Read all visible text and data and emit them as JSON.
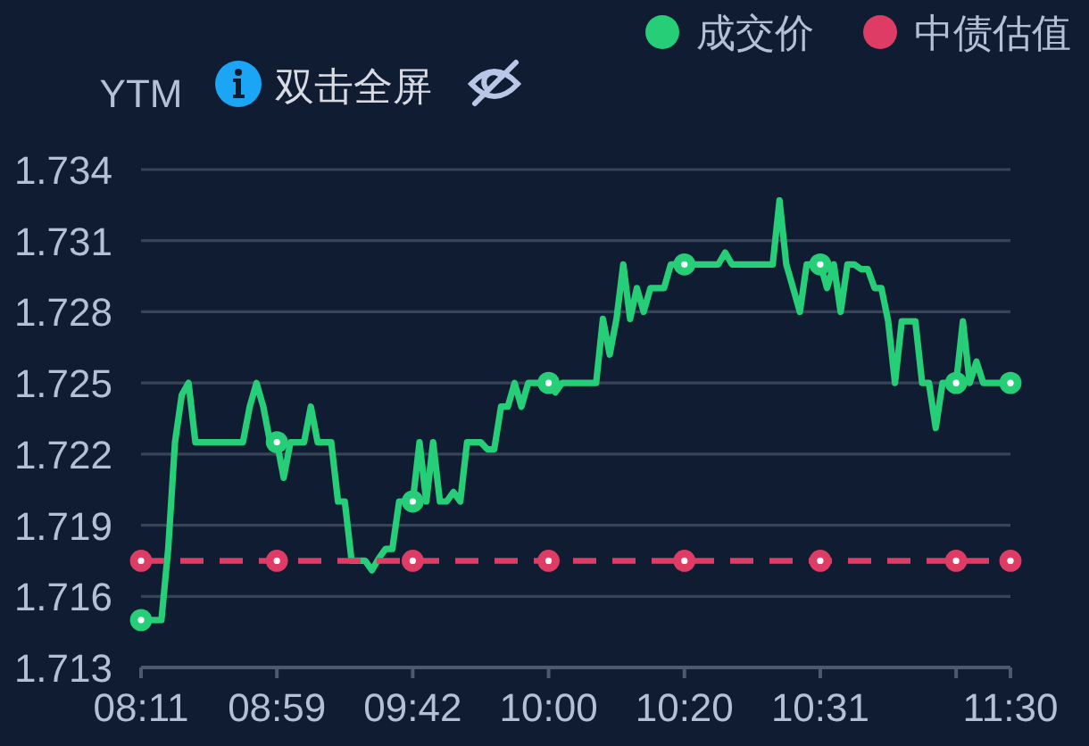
{
  "chart_data": {
    "type": "line",
    "ylabel": "YTM",
    "annotations": [
      "双击全屏"
    ],
    "categories": [
      "08:11",
      null,
      null,
      null,
      null,
      null,
      null,
      null,
      null,
      null,
      null,
      null,
      null,
      null,
      null,
      null,
      null,
      null,
      null,
      null,
      "08:59",
      null,
      null,
      null,
      null,
      null,
      null,
      null,
      null,
      null,
      null,
      null,
      null,
      null,
      null,
      null,
      null,
      null,
      null,
      null,
      "09:42",
      null,
      null,
      null,
      null,
      null,
      null,
      null,
      null,
      null,
      null,
      null,
      null,
      null,
      null,
      null,
      null,
      null,
      null,
      null,
      "10:00",
      null,
      null,
      null,
      null,
      null,
      null,
      null,
      null,
      null,
      null,
      null,
      null,
      null,
      null,
      null,
      null,
      null,
      null,
      null,
      "10:20",
      null,
      null,
      null,
      null,
      null,
      null,
      null,
      null,
      null,
      null,
      null,
      null,
      null,
      null,
      null,
      null,
      null,
      null,
      null,
      "10:31",
      null,
      null,
      null,
      null,
      null,
      null,
      null,
      null,
      null,
      null,
      null,
      null,
      null,
      null,
      null,
      null,
      null,
      null,
      null,
      null,
      null,
      null,
      null,
      null,
      null,
      null,
      null,
      "11:30"
    ],
    "series": [
      {
        "name": "成交价",
        "color": "#26ce78",
        "line_style": "solid",
        "values": [
          1.715,
          1.715,
          1.715,
          1.715,
          1.718,
          1.7225,
          1.7245,
          1.725,
          1.7225,
          1.7225,
          1.7225,
          1.7225,
          1.7225,
          1.7225,
          1.7225,
          1.7225,
          1.724,
          1.725,
          1.724,
          1.7225,
          1.7225,
          1.721,
          1.7225,
          1.7225,
          1.7225,
          1.724,
          1.7225,
          1.7225,
          1.7225,
          1.72,
          1.72,
          1.7175,
          1.7175,
          1.7175,
          1.7171,
          1.7176,
          1.718,
          1.718,
          1.72,
          1.72,
          1.72,
          1.7225,
          1.72,
          1.7225,
          1.72,
          1.72,
          1.7204,
          1.72,
          1.7225,
          1.7225,
          1.7225,
          1.7222,
          1.7222,
          1.724,
          1.724,
          1.725,
          1.724,
          1.725,
          1.725,
          1.725,
          1.725,
          1.7246,
          1.725,
          1.725,
          1.725,
          1.725,
          1.725,
          1.725,
          1.7277,
          1.7262,
          1.7277,
          1.73,
          1.7277,
          1.729,
          1.728,
          1.729,
          1.729,
          1.729,
          1.73,
          1.73,
          1.73,
          1.73,
          1.73,
          1.73,
          1.73,
          1.73,
          1.7305,
          1.73,
          1.73,
          1.73,
          1.73,
          1.73,
          1.73,
          1.73,
          1.7327,
          1.73,
          1.729,
          1.728,
          1.73,
          1.73,
          1.73,
          1.729,
          1.73,
          1.728,
          1.73,
          1.73,
          1.7298,
          1.7298,
          1.729,
          1.729,
          1.7276,
          1.725,
          1.7276,
          1.7276,
          1.7276,
          1.725,
          1.725,
          1.7231,
          1.725,
          1.725,
          1.725,
          1.7276,
          1.725,
          1.7259,
          1.725,
          1.725,
          1.725,
          1.725,
          1.725
        ]
      },
      {
        "name": "中债估值",
        "color": "#de3c64",
        "line_style": "dashed",
        "values": [
          1.7175,
          1.7175,
          1.7175,
          1.7175,
          1.7175,
          1.7175,
          1.7175,
          1.7175,
          1.7175,
          1.7175,
          1.7175,
          1.7175,
          1.7175,
          1.7175,
          1.7175,
          1.7175,
          1.7175,
          1.7175,
          1.7175,
          1.7175,
          1.7175,
          1.7175,
          1.7175,
          1.7175,
          1.7175,
          1.7175,
          1.7175,
          1.7175,
          1.7175,
          1.7175,
          1.7175,
          1.7175,
          1.7175,
          1.7175,
          1.7175,
          1.7175,
          1.7175,
          1.7175,
          1.7175,
          1.7175,
          1.7175,
          1.7175,
          1.7175,
          1.7175,
          1.7175,
          1.7175,
          1.7175,
          1.7175,
          1.7175,
          1.7175,
          1.7175,
          1.7175,
          1.7175,
          1.7175,
          1.7175,
          1.7175,
          1.7175,
          1.7175,
          1.7175,
          1.7175,
          1.7175,
          1.7175,
          1.7175,
          1.7175,
          1.7175,
          1.7175,
          1.7175,
          1.7175,
          1.7175,
          1.7175,
          1.7175,
          1.7175,
          1.7175,
          1.7175,
          1.7175,
          1.7175,
          1.7175,
          1.7175,
          1.7175,
          1.7175,
          1.7175,
          1.7175,
          1.7175,
          1.7175,
          1.7175,
          1.7175,
          1.7175,
          1.7175,
          1.7175,
          1.7175,
          1.7175,
          1.7175,
          1.7175,
          1.7175,
          1.7175,
          1.7175,
          1.7175,
          1.7175,
          1.7175,
          1.7175,
          1.7175,
          1.7175,
          1.7175,
          1.7175,
          1.7175,
          1.7175,
          1.7175,
          1.7175,
          1.7175,
          1.7175,
          1.7175,
          1.7175,
          1.7175,
          1.7175,
          1.7175,
          1.7175,
          1.7175,
          1.7175,
          1.7175,
          1.7175,
          1.7175,
          1.7175,
          1.7175,
          1.7175,
          1.7175,
          1.7175,
          1.7175,
          1.7175,
          1.7175
        ]
      }
    ],
    "ylim": [
      1.713,
      1.734
    ],
    "yticks": [
      1.713,
      1.716,
      1.719,
      1.722,
      1.725,
      1.728,
      1.731,
      1.734
    ],
    "grid": "y",
    "legend": "top right"
  }
}
